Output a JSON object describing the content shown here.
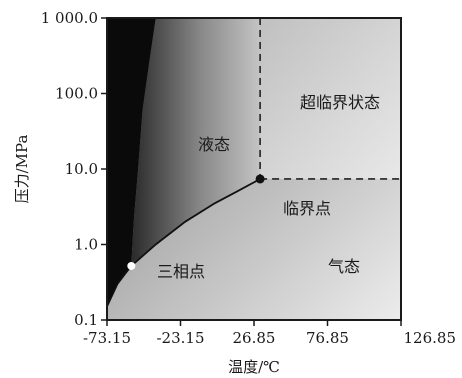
{
  "diagram": {
    "x_axis": {
      "title": "温度/℃",
      "ticks": [
        {
          "label": "-73.15",
          "value": -73.15
        },
        {
          "label": "-23.15",
          "value": -23.15
        },
        {
          "label": "26.85",
          "value": 26.85
        },
        {
          "label": "76.85",
          "value": 76.85
        },
        {
          "label": "126.85",
          "value": 126.85
        }
      ],
      "range": [
        -73.15,
        126.85
      ]
    },
    "y_axis": {
      "title": "压力/MPa",
      "scale": "log",
      "ticks": [
        {
          "label": "0.1",
          "value": 0.1
        },
        {
          "label": "1.0",
          "value": 1
        },
        {
          "label": "10.0",
          "value": 10
        },
        {
          "label": "100.0",
          "value": 100
        },
        {
          "label": "1 000.0",
          "value": 1000
        }
      ],
      "range": [
        0.1,
        1000
      ]
    },
    "regions": {
      "supercritical": "超临界状态",
      "liquid": "液态",
      "gas": "气态"
    },
    "points": {
      "triple": {
        "label": "三相点",
        "temperature": -56.6,
        "pressure": 0.52
      },
      "critical": {
        "label": "临界点",
        "temperature": 31.0,
        "pressure": 7.38
      }
    },
    "curves": {
      "sublimation": [
        [
          -73.15,
          0.15
        ],
        [
          -66,
          0.3
        ],
        [
          -56.6,
          0.52
        ]
      ],
      "melting": [
        [
          -56.6,
          0.52
        ],
        [
          -55,
          2
        ],
        [
          -52,
          10
        ],
        [
          -49,
          60
        ],
        [
          -44,
          300
        ],
        [
          -40,
          1000
        ]
      ],
      "vaporization": [
        [
          -56.6,
          0.52
        ],
        [
          -40,
          1.0
        ],
        [
          -20,
          2.0
        ],
        [
          0,
          3.5
        ],
        [
          15,
          5.0
        ],
        [
          31.0,
          7.38
        ]
      ]
    },
    "colors": {
      "solid": "#0a0a0a",
      "frame": "#1a1a1a",
      "background": "#ffffff"
    }
  }
}
